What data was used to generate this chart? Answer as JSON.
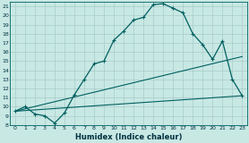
{
  "xlabel": "Humidex (Indice chaleur)",
  "background_color": "#c8e8e4",
  "grid_color": "#a8ccc8",
  "line_color": "#006060",
  "xlim": [
    -0.5,
    23.5
  ],
  "ylim": [
    8,
    21.5
  ],
  "xticks": [
    0,
    1,
    2,
    3,
    4,
    5,
    6,
    7,
    8,
    9,
    10,
    11,
    12,
    13,
    14,
    15,
    16,
    17,
    18,
    19,
    20,
    21,
    22,
    23
  ],
  "yticks": [
    8,
    9,
    10,
    11,
    12,
    13,
    14,
    15,
    16,
    17,
    18,
    19,
    20,
    21
  ],
  "main_x": [
    0,
    1,
    2,
    3,
    4,
    5,
    6,
    7,
    8,
    9,
    10,
    11,
    12,
    13,
    14,
    15,
    16,
    17,
    18,
    19,
    20,
    21,
    22,
    23
  ],
  "main_y": [
    9.5,
    10.0,
    9.2,
    9.0,
    8.2,
    9.3,
    11.3,
    13.0,
    14.7,
    15.0,
    17.3,
    18.3,
    19.5,
    19.8,
    21.2,
    21.3,
    20.8,
    20.3,
    18.0,
    16.8,
    15.2,
    17.2,
    13.0,
    11.2
  ],
  "line1_x": [
    0,
    23
  ],
  "line1_y": [
    9.5,
    11.2
  ],
  "line2_x": [
    0,
    23
  ],
  "line2_y": [
    9.5,
    15.5
  ]
}
